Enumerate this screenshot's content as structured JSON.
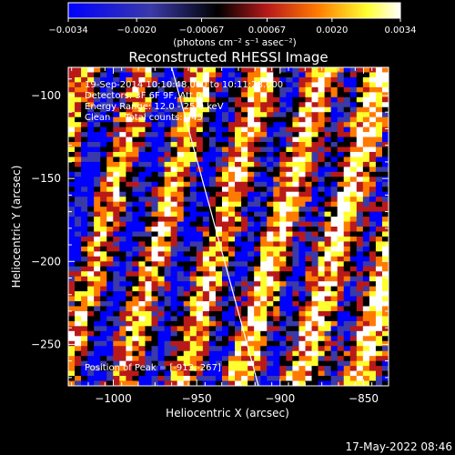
{
  "chart_data": {
    "type": "heatmap",
    "title": "Reconstructed RHESSI Image",
    "xlabel": "Heliocentric X (arcsec)",
    "ylabel": "Heliocentric Y (arcsec)",
    "xlim": [
      -1027,
      -835
    ],
    "ylim": [
      -275,
      -83
    ],
    "xticks": [
      -1000,
      -950,
      -900,
      -850
    ],
    "xtick_labels": [
      "−1000",
      "−950",
      "−900",
      "−850"
    ],
    "yticks": [
      -250,
      -200,
      -150,
      -100
    ],
    "ytick_labels": [
      "−250",
      "−200",
      "−150",
      "−100"
    ],
    "colorbar": {
      "range": [
        -0.0034,
        0.0034
      ],
      "ticks": [
        -0.0034,
        -0.002,
        -0.00067,
        0.00067,
        0.002,
        0.0034
      ],
      "tick_labels": [
        "−0.0034",
        "−0.0020",
        "−0.00067",
        "0.00067",
        "0.0020",
        "0.0034"
      ],
      "unit_label": "(photons cm⁻² s⁻¹ asec⁻²)",
      "colors": [
        "#0000ff",
        "#3a3aa8",
        "#000000",
        "#b81a1a",
        "#ff7a00",
        "#ffff30",
        "#ffffff"
      ]
    },
    "annotations": [
      "19-Sep-2014 10:10:48.000 to 10:11:28.000",
      "Detectors: 3F 6F 9F, Att 0",
      "Energy Range: 12.0 - 25.0 keV",
      "Clean     Total counts: 345"
    ],
    "peak_label": "Position of Peak = [-913,-267]",
    "limb_line": [
      [
        -965,
        -83
      ],
      [
        -913,
        -275
      ]
    ],
    "grid": false
  },
  "footer": {
    "timestamp": "17-May-2022 08:46"
  }
}
